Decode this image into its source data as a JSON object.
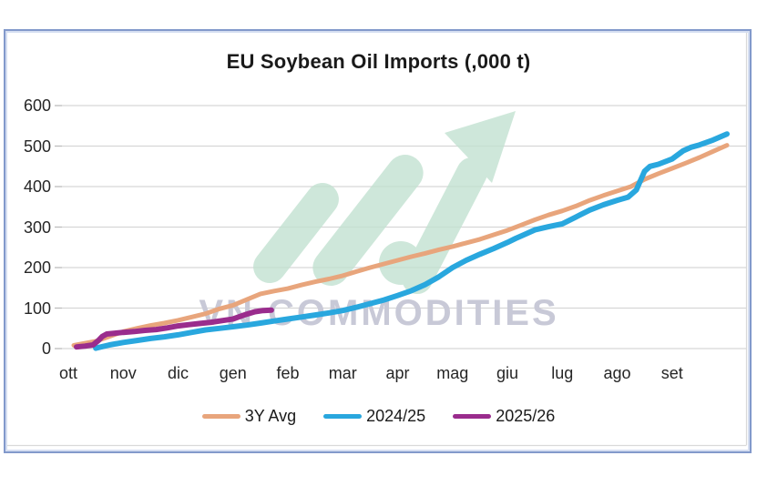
{
  "chart_data": {
    "type": "line",
    "title": "EU Soybean Oil Imports (,000 t)",
    "xlabel": "",
    "ylabel": "",
    "x_categories": [
      "ott",
      "nov",
      "dic",
      "gen",
      "feb",
      "mar",
      "apr",
      "mag",
      "giu",
      "lug",
      "ago",
      "set"
    ],
    "x_unit": "months since start of October (0 = ott tick, 12 = end of set)",
    "y_ticks": [
      0,
      100,
      200,
      300,
      400,
      500,
      600
    ],
    "ylim": [
      0,
      600
    ],
    "grid": true,
    "legend_position": "bottom",
    "series": [
      {
        "name": "3Y Avg",
        "color": "#e8a57c",
        "points": [
          [
            0.1,
            8
          ],
          [
            0.25,
            12
          ],
          [
            0.5,
            18
          ],
          [
            0.75,
            30
          ],
          [
            1,
            42
          ],
          [
            1.25,
            50
          ],
          [
            1.5,
            57
          ],
          [
            1.75,
            63
          ],
          [
            2,
            70
          ],
          [
            2.25,
            78
          ],
          [
            2.5,
            86
          ],
          [
            2.75,
            98
          ],
          [
            3,
            107
          ],
          [
            3.25,
            121
          ],
          [
            3.5,
            135
          ],
          [
            3.75,
            142
          ],
          [
            4,
            148
          ],
          [
            4.25,
            157
          ],
          [
            4.5,
            165
          ],
          [
            4.75,
            172
          ],
          [
            5,
            180
          ],
          [
            5.25,
            190
          ],
          [
            5.5,
            200
          ],
          [
            5.75,
            209
          ],
          [
            6,
            218
          ],
          [
            6.25,
            227
          ],
          [
            6.5,
            235
          ],
          [
            6.75,
            244
          ],
          [
            7,
            252
          ],
          [
            7.25,
            261
          ],
          [
            7.5,
            270
          ],
          [
            7.75,
            281
          ],
          [
            8,
            292
          ],
          [
            8.25,
            305
          ],
          [
            8.5,
            318
          ],
          [
            8.75,
            330
          ],
          [
            9,
            340
          ],
          [
            9.25,
            352
          ],
          [
            9.5,
            366
          ],
          [
            9.75,
            378
          ],
          [
            10,
            389
          ],
          [
            10.25,
            400
          ],
          [
            10.5,
            418
          ],
          [
            10.75,
            432
          ],
          [
            11,
            445
          ],
          [
            11.25,
            458
          ],
          [
            11.5,
            472
          ],
          [
            11.75,
            487
          ],
          [
            12,
            502
          ]
        ]
      },
      {
        "name": "2024/25",
        "color": "#29a7de",
        "points": [
          [
            0.5,
            1
          ],
          [
            0.75,
            9
          ],
          [
            1,
            15
          ],
          [
            1.25,
            20
          ],
          [
            1.5,
            25
          ],
          [
            1.75,
            29
          ],
          [
            2,
            34
          ],
          [
            2.25,
            40
          ],
          [
            2.5,
            46
          ],
          [
            2.75,
            50
          ],
          [
            3,
            54
          ],
          [
            3.25,
            58
          ],
          [
            3.5,
            63
          ],
          [
            3.75,
            68
          ],
          [
            4,
            73
          ],
          [
            4.25,
            78
          ],
          [
            4.5,
            83
          ],
          [
            4.75,
            88
          ],
          [
            5,
            94
          ],
          [
            5.25,
            102
          ],
          [
            5.5,
            111
          ],
          [
            5.75,
            120
          ],
          [
            6,
            131
          ],
          [
            6.25,
            143
          ],
          [
            6.5,
            158
          ],
          [
            6.75,
            177
          ],
          [
            7,
            200
          ],
          [
            7.25,
            218
          ],
          [
            7.5,
            233
          ],
          [
            7.75,
            247
          ],
          [
            8,
            262
          ],
          [
            8.15,
            272
          ],
          [
            8.3,
            281
          ],
          [
            8.5,
            293
          ],
          [
            8.75,
            301
          ],
          [
            9,
            308
          ],
          [
            9.25,
            325
          ],
          [
            9.5,
            342
          ],
          [
            9.75,
            355
          ],
          [
            10,
            366
          ],
          [
            10.2,
            374
          ],
          [
            10.35,
            392
          ],
          [
            10.5,
            438
          ],
          [
            10.6,
            450
          ],
          [
            10.75,
            455
          ],
          [
            11,
            468
          ],
          [
            11.2,
            488
          ],
          [
            11.35,
            497
          ],
          [
            11.5,
            503
          ],
          [
            11.75,
            515
          ],
          [
            12,
            530
          ]
        ]
      },
      {
        "name": "2025/26",
        "color": "#9a2c8d",
        "points": [
          [
            0.15,
            4
          ],
          [
            0.3,
            6
          ],
          [
            0.45,
            9
          ],
          [
            0.55,
            20
          ],
          [
            0.62,
            30
          ],
          [
            0.7,
            36
          ],
          [
            0.85,
            38
          ],
          [
            1,
            40
          ],
          [
            1.2,
            42
          ],
          [
            1.4,
            45
          ],
          [
            1.6,
            47
          ],
          [
            1.8,
            51
          ],
          [
            2,
            56
          ],
          [
            2.2,
            59
          ],
          [
            2.4,
            62
          ],
          [
            2.6,
            65
          ],
          [
            2.8,
            69
          ],
          [
            3,
            73
          ],
          [
            3.1,
            78
          ],
          [
            3.25,
            85
          ],
          [
            3.4,
            91
          ],
          [
            3.55,
            94
          ],
          [
            3.7,
            95
          ]
        ]
      }
    ]
  },
  "watermark": {
    "text": "VN COMMODITIES",
    "text_color": "#c8c9d7",
    "arrow_color": "#c3e2d1"
  },
  "style_colors": {
    "gridline": "#d6d6d6",
    "tick": "#bdbdbd",
    "plot_border": "#d9d9d9",
    "frame_border": "#8299cb",
    "axis_text": "#262626"
  }
}
